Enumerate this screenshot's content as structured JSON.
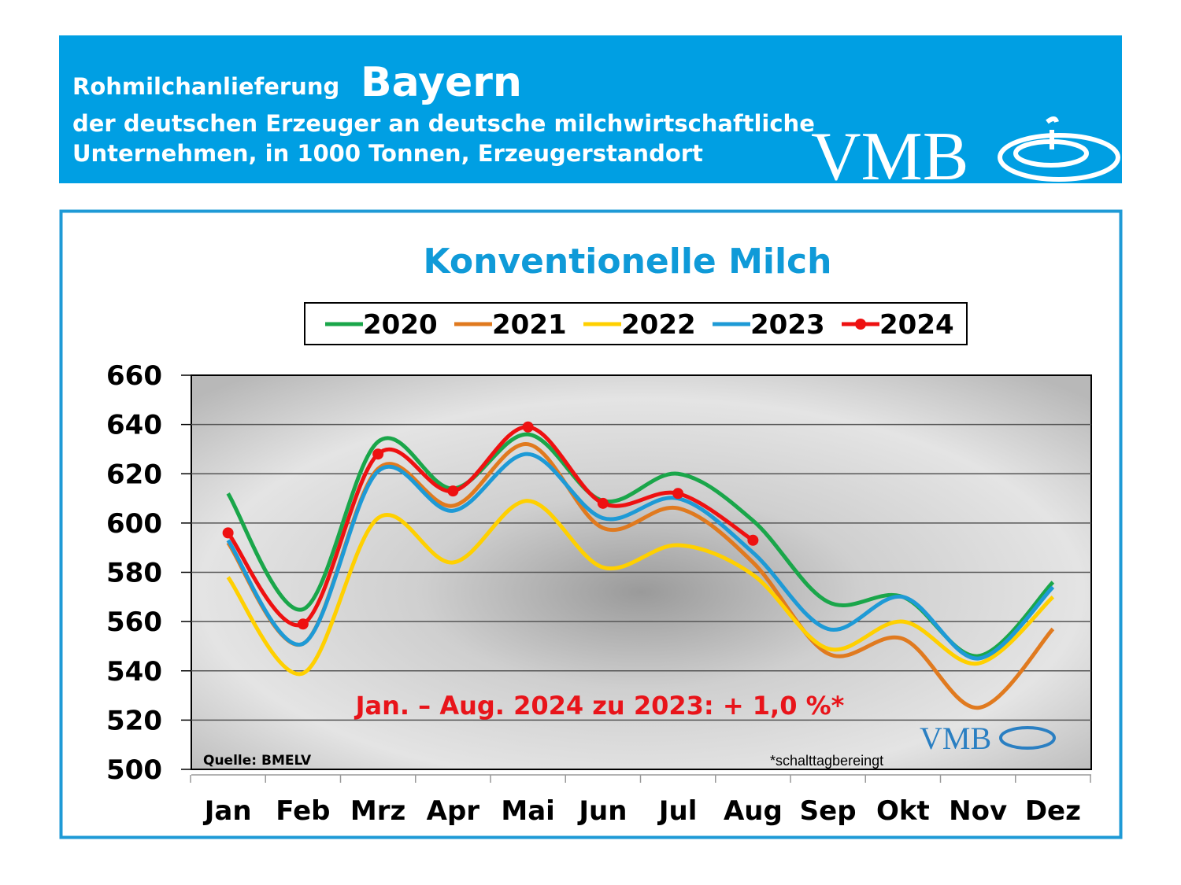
{
  "header": {
    "label": "Rohmilchanlieferung",
    "region": "Bayern",
    "line1": "der deutschen Erzeuger an deutsche milchwirtschaftliche",
    "line2": "Unternehmen, in 1000 Tonnen, Erzeugerstandort",
    "logo": "VMB"
  },
  "chart_data": {
    "type": "line",
    "title": "Konventionelle Milch",
    "categories": [
      "Jan",
      "Feb",
      "Mrz",
      "Apr",
      "Mai",
      "Jun",
      "Jul",
      "Aug",
      "Sep",
      "Okt",
      "Nov",
      "Dez"
    ],
    "series": [
      {
        "name": "2020",
        "color": "#1aa64a",
        "values": [
          612,
          565,
          633,
          614,
          636,
          609,
          620,
          601,
          568,
          570,
          546,
          576
        ]
      },
      {
        "name": "2021",
        "color": "#e07a1f",
        "values": [
          592,
          551,
          622,
          607,
          632,
          598,
          606,
          584,
          547,
          553,
          525,
          557
        ]
      },
      {
        "name": "2022",
        "color": "#ffd000",
        "values": [
          578,
          539,
          602,
          584,
          609,
          582,
          591,
          579,
          549,
          560,
          543,
          570
        ]
      },
      {
        "name": "2023",
        "color": "#1e9ad6",
        "values": [
          593,
          551,
          621,
          605,
          628,
          602,
          610,
          588,
          557,
          570,
          545,
          574
        ]
      },
      {
        "name": "2024",
        "color": "#ee1111",
        "markers": true,
        "values": [
          596,
          559,
          628,
          613,
          639,
          608,
          612,
          593,
          null,
          null,
          null,
          null
        ]
      }
    ],
    "ylim": [
      500,
      660
    ],
    "yticks": [
      500,
      520,
      540,
      560,
      580,
      600,
      620,
      640,
      660
    ],
    "grid": true,
    "legend": "top",
    "annotation": "Jan. – Aug. 2024 zu 2023: + 1,0 %*",
    "source": "Quelle:  BMELV",
    "note": "*schalttagbereingt",
    "logo": "VMB"
  }
}
